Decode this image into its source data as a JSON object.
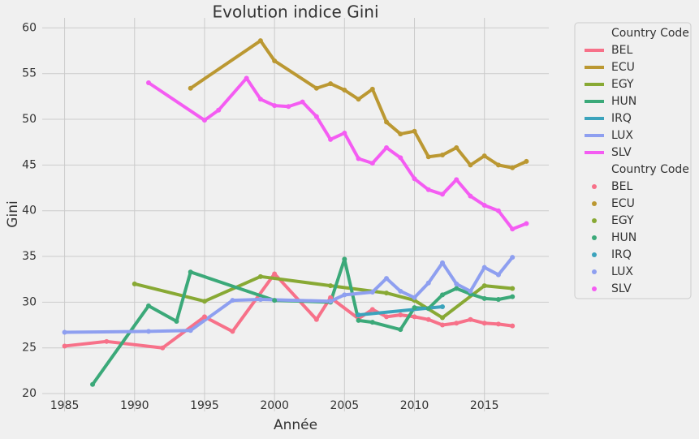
{
  "chart_data": {
    "type": "line",
    "title": "Evolution indice Gini",
    "x_label": "Année",
    "y_label": "Gini",
    "xlim": [
      1983.4,
      2019.6
    ],
    "ylim": [
      18.05,
      61.1
    ],
    "xticks": [
      1985,
      1990,
      1995,
      2000,
      2005,
      2010,
      2015
    ],
    "yticks": [
      20,
      25,
      30,
      35,
      40,
      45,
      50,
      55,
      60
    ],
    "grid": true,
    "legend_position": "outside-right",
    "legend_title": "Country Code",
    "markers": true,
    "series": [
      {
        "name": "BEL",
        "color": "#f77189",
        "x": [
          1985,
          1988,
          1992,
          1995,
          1997,
          2000,
          2003,
          2004,
          2006,
          2007,
          2008,
          2009,
          2010,
          2011,
          2012,
          2013,
          2014,
          2015,
          2016,
          2017
        ],
        "values": [
          25.2,
          25.7,
          25.0,
          28.4,
          26.8,
          33.1,
          28.1,
          30.5,
          28.2,
          29.2,
          28.4,
          28.6,
          28.4,
          28.1,
          27.5,
          27.7,
          28.1,
          27.7,
          27.6,
          27.4
        ]
      },
      {
        "name": "ECU",
        "color": "#bb9832",
        "x": [
          1994,
          1999,
          2000,
          2003,
          2004,
          2005,
          2006,
          2007,
          2008,
          2009,
          2010,
          2011,
          2012,
          2013,
          2014,
          2015,
          2016,
          2017,
          2018
        ],
        "values": [
          53.4,
          58.6,
          56.4,
          53.4,
          53.9,
          53.2,
          52.2,
          53.3,
          49.7,
          48.4,
          48.7,
          45.9,
          46.1,
          46.9,
          45.0,
          46.0,
          45.0,
          44.7,
          45.4
        ]
      },
      {
        "name": "EGY",
        "color": "#88a934",
        "x": [
          1990,
          1995,
          1999,
          2004,
          2008,
          2010,
          2012,
          2015,
          2017
        ],
        "values": [
          32.0,
          30.1,
          32.8,
          31.8,
          31.0,
          30.2,
          28.3,
          31.8,
          31.5
        ]
      },
      {
        "name": "HUN",
        "color": "#3ba979",
        "x": [
          1987,
          1991,
          1993,
          1994,
          2000,
          2004,
          2005,
          2006,
          2007,
          2009,
          2010,
          2011,
          2012,
          2013,
          2014,
          2015,
          2016,
          2017
        ],
        "values": [
          21.0,
          29.6,
          27.9,
          33.3,
          30.2,
          30.0,
          34.7,
          28.0,
          27.8,
          27.0,
          29.4,
          29.3,
          30.8,
          31.5,
          30.9,
          30.4,
          30.3,
          30.6
        ]
      },
      {
        "name": "IRQ",
        "color": "#3ba3bc",
        "x": [
          2006,
          2012
        ],
        "values": [
          28.6,
          29.5
        ]
      },
      {
        "name": "LUX",
        "color": "#8e9ff0",
        "x": [
          1985,
          1991,
          1994,
          1997,
          1999,
          2004,
          2005,
          2007,
          2008,
          2009,
          2010,
          2011,
          2012,
          2013,
          2014,
          2015,
          2016,
          2017
        ],
        "values": [
          26.7,
          26.8,
          26.9,
          30.2,
          30.3,
          30.1,
          30.8,
          31.1,
          32.6,
          31.2,
          30.5,
          32.1,
          34.3,
          32.0,
          31.2,
          33.8,
          33.0,
          34.9
        ]
      },
      {
        "name": "SLV",
        "color": "#f45cf2",
        "x": [
          1991,
          1995,
          1996,
          1998,
          1999,
          2000,
          2001,
          2002,
          2003,
          2004,
          2005,
          2006,
          2007,
          2008,
          2009,
          2010,
          2011,
          2012,
          2013,
          2014,
          2015,
          2016,
          2017,
          2018
        ],
        "values": [
          54.0,
          49.9,
          51.0,
          54.5,
          52.2,
          51.5,
          51.4,
          51.9,
          50.3,
          47.8,
          48.5,
          45.7,
          45.2,
          46.9,
          45.8,
          43.5,
          42.3,
          41.8,
          43.4,
          41.6,
          40.6,
          40.0,
          38.0,
          38.6
        ]
      }
    ]
  }
}
